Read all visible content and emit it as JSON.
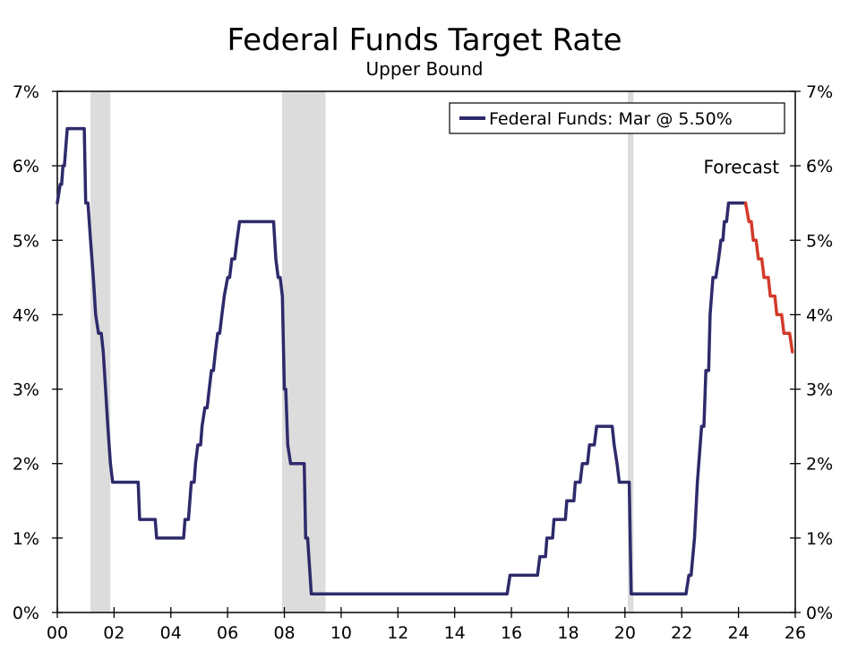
{
  "chart_data": {
    "type": "line",
    "title": "Federal Funds Target Rate",
    "subtitle": "Upper Bound",
    "xlabel": "",
    "ylabel": "",
    "xlim": [
      2000,
      2026
    ],
    "ylim": [
      0,
      7
    ],
    "x_ticks": [
      {
        "value": 2000,
        "label": "00"
      },
      {
        "value": 2002,
        "label": "02"
      },
      {
        "value": 2004,
        "label": "04"
      },
      {
        "value": 2006,
        "label": "06"
      },
      {
        "value": 2008,
        "label": "08"
      },
      {
        "value": 2010,
        "label": "10"
      },
      {
        "value": 2012,
        "label": "12"
      },
      {
        "value": 2014,
        "label": "14"
      },
      {
        "value": 2016,
        "label": "16"
      },
      {
        "value": 2018,
        "label": "18"
      },
      {
        "value": 2020,
        "label": "20"
      },
      {
        "value": 2022,
        "label": "22"
      },
      {
        "value": 2024,
        "label": "24"
      },
      {
        "value": 2026,
        "label": "26"
      }
    ],
    "y_ticks": [
      {
        "value": 0,
        "label": "0%"
      },
      {
        "value": 1,
        "label": "1%"
      },
      {
        "value": 2,
        "label": "2%"
      },
      {
        "value": 3,
        "label": "3%"
      },
      {
        "value": 4,
        "label": "4%"
      },
      {
        "value": 5,
        "label": "5%"
      },
      {
        "value": 6,
        "label": "6%"
      },
      {
        "value": 7,
        "label": "7%"
      }
    ],
    "recessions": [
      [
        2001.17,
        2001.87
      ],
      [
        2007.92,
        2009.45
      ],
      [
        2020.1,
        2020.3
      ]
    ],
    "legend": {
      "label": "Federal Funds: Mar @ 5.50%",
      "placement": "top-right"
    },
    "annotations": [
      {
        "text": "Forecast",
        "x": 2024.1,
        "y": 5.9
      }
    ],
    "series": [
      {
        "name": "Federal Funds: Mar @ 5.50%",
        "color": "#2e2a6b",
        "points": [
          [
            2000.0,
            5.5
          ],
          [
            2000.1,
            5.75
          ],
          [
            2000.15,
            5.75
          ],
          [
            2000.2,
            6.0
          ],
          [
            2000.25,
            6.0
          ],
          [
            2000.35,
            6.5
          ],
          [
            2000.95,
            6.5
          ],
          [
            2001.0,
            5.5
          ],
          [
            2001.08,
            5.5
          ],
          [
            2001.17,
            5.0
          ],
          [
            2001.27,
            4.5
          ],
          [
            2001.35,
            4.0
          ],
          [
            2001.45,
            3.75
          ],
          [
            2001.55,
            3.75
          ],
          [
            2001.62,
            3.5
          ],
          [
            2001.7,
            3.0
          ],
          [
            2001.78,
            2.5
          ],
          [
            2001.87,
            2.0
          ],
          [
            2001.95,
            1.75
          ],
          [
            2002.85,
            1.75
          ],
          [
            2002.9,
            1.25
          ],
          [
            2003.45,
            1.25
          ],
          [
            2003.5,
            1.0
          ],
          [
            2004.45,
            1.0
          ],
          [
            2004.5,
            1.25
          ],
          [
            2004.62,
            1.25
          ],
          [
            2004.67,
            1.5
          ],
          [
            2004.72,
            1.75
          ],
          [
            2004.82,
            1.75
          ],
          [
            2004.87,
            2.0
          ],
          [
            2004.95,
            2.25
          ],
          [
            2005.05,
            2.25
          ],
          [
            2005.1,
            2.5
          ],
          [
            2005.2,
            2.75
          ],
          [
            2005.28,
            2.75
          ],
          [
            2005.35,
            3.0
          ],
          [
            2005.43,
            3.25
          ],
          [
            2005.5,
            3.25
          ],
          [
            2005.57,
            3.5
          ],
          [
            2005.65,
            3.75
          ],
          [
            2005.72,
            3.75
          ],
          [
            2005.8,
            4.0
          ],
          [
            2005.88,
            4.25
          ],
          [
            2006.0,
            4.5
          ],
          [
            2006.07,
            4.5
          ],
          [
            2006.15,
            4.75
          ],
          [
            2006.25,
            4.75
          ],
          [
            2006.33,
            5.0
          ],
          [
            2006.42,
            5.25
          ],
          [
            2007.62,
            5.25
          ],
          [
            2007.7,
            4.75
          ],
          [
            2007.78,
            4.5
          ],
          [
            2007.85,
            4.5
          ],
          [
            2007.93,
            4.25
          ],
          [
            2008.0,
            3.0
          ],
          [
            2008.05,
            3.0
          ],
          [
            2008.12,
            2.25
          ],
          [
            2008.22,
            2.0
          ],
          [
            2008.7,
            2.0
          ],
          [
            2008.75,
            1.0
          ],
          [
            2008.82,
            1.0
          ],
          [
            2008.95,
            0.25
          ],
          [
            2015.85,
            0.25
          ],
          [
            2015.95,
            0.5
          ],
          [
            2016.92,
            0.5
          ],
          [
            2017.0,
            0.75
          ],
          [
            2017.2,
            0.75
          ],
          [
            2017.25,
            1.0
          ],
          [
            2017.45,
            1.0
          ],
          [
            2017.5,
            1.25
          ],
          [
            2017.9,
            1.25
          ],
          [
            2017.95,
            1.5
          ],
          [
            2018.2,
            1.5
          ],
          [
            2018.25,
            1.75
          ],
          [
            2018.42,
            1.75
          ],
          [
            2018.5,
            2.0
          ],
          [
            2018.68,
            2.0
          ],
          [
            2018.75,
            2.25
          ],
          [
            2018.92,
            2.25
          ],
          [
            2019.0,
            2.5
          ],
          [
            2019.55,
            2.5
          ],
          [
            2019.62,
            2.25
          ],
          [
            2019.72,
            2.0
          ],
          [
            2019.8,
            1.75
          ],
          [
            2020.15,
            1.75
          ],
          [
            2020.22,
            0.25
          ],
          [
            2022.15,
            0.25
          ],
          [
            2022.25,
            0.5
          ],
          [
            2022.33,
            0.5
          ],
          [
            2022.45,
            1.0
          ],
          [
            2022.55,
            1.75
          ],
          [
            2022.7,
            2.5
          ],
          [
            2022.78,
            2.5
          ],
          [
            2022.85,
            3.25
          ],
          [
            2022.95,
            3.25
          ],
          [
            2023.0,
            4.0
          ],
          [
            2023.1,
            4.5
          ],
          [
            2023.2,
            4.5
          ],
          [
            2023.3,
            4.75
          ],
          [
            2023.38,
            5.0
          ],
          [
            2023.45,
            5.0
          ],
          [
            2023.5,
            5.25
          ],
          [
            2023.58,
            5.25
          ],
          [
            2023.65,
            5.5
          ],
          [
            2024.25,
            5.5
          ]
        ]
      },
      {
        "name": "Forecast",
        "color": "#d33a2a",
        "points": [
          [
            2024.25,
            5.5
          ],
          [
            2024.37,
            5.25
          ],
          [
            2024.45,
            5.25
          ],
          [
            2024.52,
            5.0
          ],
          [
            2024.62,
            5.0
          ],
          [
            2024.7,
            4.75
          ],
          [
            2024.82,
            4.75
          ],
          [
            2024.9,
            4.5
          ],
          [
            2025.05,
            4.5
          ],
          [
            2025.12,
            4.25
          ],
          [
            2025.28,
            4.25
          ],
          [
            2025.35,
            4.0
          ],
          [
            2025.52,
            4.0
          ],
          [
            2025.6,
            3.75
          ],
          [
            2025.8,
            3.75
          ],
          [
            2025.9,
            3.5
          ]
        ]
      }
    ]
  }
}
